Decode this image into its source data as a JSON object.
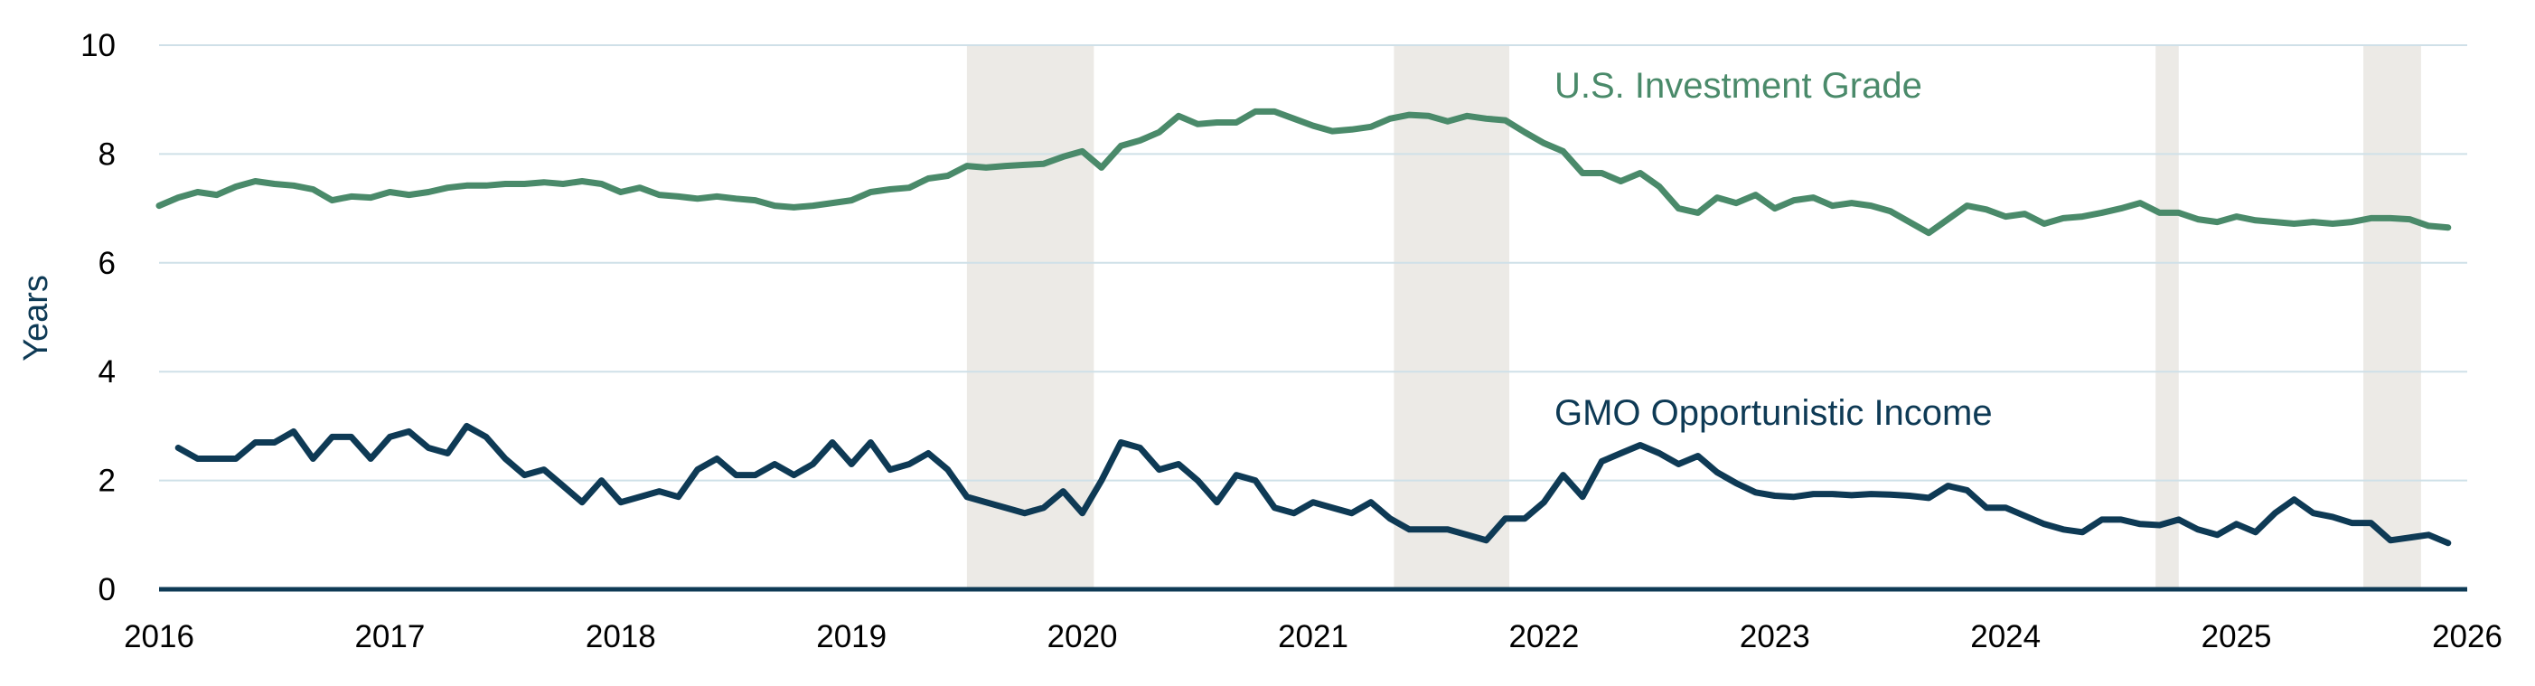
{
  "chart_data": {
    "type": "line",
    "ylabel": "Years",
    "ylim": [
      0,
      10
    ],
    "yticks": [
      "0",
      "2",
      "4",
      "6",
      "8",
      "10"
    ],
    "xlim": [
      2016,
      2026
    ],
    "xticks": [
      "2016",
      "2017",
      "2018",
      "2019",
      "2020",
      "2021",
      "2022",
      "2023",
      "2024",
      "2025",
      "2026"
    ],
    "grid": "horizontal",
    "shaded_periods": [
      [
        2019.5,
        2020.05
      ],
      [
        2021.35,
        2021.85
      ],
      [
        2024.65,
        2024.75
      ],
      [
        2025.55,
        2025.8
      ]
    ],
    "colors": {
      "shade": "#eceae6",
      "grid": "#cfe0e8",
      "axis": "#0e3a55"
    },
    "series": [
      {
        "name": "U.S. Investment Grade",
        "color": "#4a8a6a",
        "x": [
          2016,
          2016.083,
          2016.167,
          2016.25,
          2016.333,
          2016.417,
          2016.5,
          2016.583,
          2016.667,
          2016.75,
          2016.833,
          2016.917,
          2017,
          2017.083,
          2017.167,
          2017.25,
          2017.333,
          2017.417,
          2017.5,
          2017.583,
          2017.667,
          2017.75,
          2017.833,
          2017.917,
          2018,
          2018.083,
          2018.167,
          2018.25,
          2018.333,
          2018.417,
          2018.5,
          2018.583,
          2018.667,
          2018.75,
          2018.833,
          2018.917,
          2019,
          2019.083,
          2019.167,
          2019.25,
          2019.333,
          2019.417,
          2019.5,
          2019.583,
          2019.667,
          2019.75,
          2019.833,
          2019.917,
          2020,
          2020.083,
          2020.167,
          2020.25,
          2020.333,
          2020.417,
          2020.5,
          2020.583,
          2020.667,
          2020.75,
          2020.833,
          2020.917,
          2021,
          2021.083,
          2021.167,
          2021.25,
          2021.333,
          2021.417,
          2021.5,
          2021.583,
          2021.667,
          2021.75,
          2021.833,
          2021.917,
          2022,
          2022.083,
          2022.167,
          2022.25,
          2022.333,
          2022.417,
          2022.5,
          2022.583,
          2022.667,
          2022.75,
          2022.833,
          2022.917,
          2023,
          2023.083,
          2023.167,
          2023.25,
          2023.333,
          2023.417,
          2023.5,
          2023.583,
          2023.667,
          2023.75,
          2023.833,
          2023.917,
          2024,
          2024.083,
          2024.167,
          2024.25,
          2024.333,
          2024.417,
          2024.5,
          2024.583,
          2024.667,
          2024.75,
          2024.833,
          2024.917,
          2025,
          2025.083,
          2025.167,
          2025.25,
          2025.333,
          2025.417,
          2025.5,
          2025.583,
          2025.667,
          2025.75,
          2025.833,
          2025.917
        ],
        "y": [
          7.05,
          7.2,
          7.3,
          7.25,
          7.4,
          7.5,
          7.45,
          7.42,
          7.35,
          7.15,
          7.22,
          7.2,
          7.3,
          7.25,
          7.3,
          7.38,
          7.42,
          7.42,
          7.45,
          7.45,
          7.48,
          7.45,
          7.5,
          7.45,
          7.3,
          7.38,
          7.25,
          7.22,
          7.18,
          7.22,
          7.18,
          7.15,
          7.05,
          7.02,
          7.05,
          7.1,
          7.15,
          7.3,
          7.35,
          7.38,
          7.55,
          7.6,
          7.78,
          7.75,
          7.78,
          7.8,
          7.82,
          7.95,
          8.05,
          7.75,
          8.15,
          8.25,
          8.4,
          8.7,
          8.55,
          8.58,
          8.58,
          8.78,
          8.78,
          8.65,
          8.52,
          8.42,
          8.45,
          8.5,
          8.65,
          8.72,
          8.7,
          8.6,
          8.7,
          8.65,
          8.62,
          8.4,
          8.2,
          8.05,
          7.65,
          7.65,
          7.5,
          7.65,
          7.4,
          7.0,
          6.92,
          7.2,
          7.1,
          7.25,
          7.0,
          7.15,
          7.2,
          7.05,
          7.1,
          7.05,
          6.95,
          6.75,
          6.55,
          6.8,
          7.05,
          6.98,
          6.85,
          6.9,
          6.72,
          6.82,
          6.85,
          6.92,
          7.0,
          7.1,
          6.92,
          6.92,
          6.8,
          6.75,
          6.85,
          6.78,
          6.75,
          6.72,
          6.75,
          6.72,
          6.75,
          6.82,
          6.82,
          6.8,
          6.68,
          6.65
        ]
      },
      {
        "name": "GMO Opportunistic Income",
        "color": "#0e3a55",
        "x": [
          2016.083,
          2016.167,
          2016.25,
          2016.333,
          2016.417,
          2016.5,
          2016.583,
          2016.667,
          2016.75,
          2016.833,
          2016.917,
          2017,
          2017.083,
          2017.167,
          2017.25,
          2017.333,
          2017.417,
          2017.5,
          2017.583,
          2017.667,
          2017.75,
          2017.833,
          2017.917,
          2018,
          2018.083,
          2018.167,
          2018.25,
          2018.333,
          2018.417,
          2018.5,
          2018.583,
          2018.667,
          2018.75,
          2018.833,
          2018.917,
          2019,
          2019.083,
          2019.167,
          2019.25,
          2019.333,
          2019.417,
          2019.5,
          2019.583,
          2019.667,
          2019.75,
          2019.833,
          2019.917,
          2020,
          2020.083,
          2020.167,
          2020.25,
          2020.333,
          2020.417,
          2020.5,
          2020.583,
          2020.667,
          2020.75,
          2020.833,
          2020.917,
          2021,
          2021.083,
          2021.167,
          2021.25,
          2021.333,
          2021.417,
          2021.5,
          2021.583,
          2021.667,
          2021.75,
          2021.833,
          2021.917,
          2022,
          2022.083,
          2022.167,
          2022.25,
          2022.333,
          2022.417,
          2022.5,
          2022.583,
          2022.667,
          2022.75,
          2022.833,
          2022.917,
          2023,
          2023.083,
          2023.167,
          2023.25,
          2023.333,
          2023.417,
          2023.5,
          2023.583,
          2023.667,
          2023.75,
          2023.833,
          2023.917,
          2024,
          2024.083,
          2024.167,
          2024.25,
          2024.333,
          2024.417,
          2024.5,
          2024.583,
          2024.667,
          2024.75,
          2024.833,
          2024.917,
          2025,
          2025.083,
          2025.167,
          2025.25,
          2025.333,
          2025.417,
          2025.5,
          2025.583,
          2025.667,
          2025.75,
          2025.833,
          2025.917
        ],
        "y": [
          2.6,
          2.4,
          2.4,
          2.4,
          2.7,
          2.7,
          2.9,
          2.4,
          2.8,
          2.8,
          2.4,
          2.8,
          2.9,
          2.6,
          2.5,
          3.0,
          2.8,
          2.4,
          2.1,
          2.2,
          1.9,
          1.6,
          2.0,
          1.6,
          1.7,
          1.8,
          1.7,
          2.2,
          2.4,
          2.1,
          2.1,
          2.3,
          2.1,
          2.3,
          2.7,
          2.3,
          2.7,
          2.2,
          2.3,
          2.5,
          2.2,
          1.7,
          1.6,
          1.5,
          1.4,
          1.5,
          1.8,
          1.4,
          2.0,
          2.7,
          2.6,
          2.2,
          2.3,
          2.0,
          1.6,
          2.1,
          2.0,
          1.5,
          1.4,
          1.6,
          1.5,
          1.4,
          1.6,
          1.3,
          1.1,
          1.1,
          1.1,
          1.0,
          0.9,
          1.3,
          1.3,
          1.6,
          2.1,
          1.7,
          2.35,
          2.5,
          2.65,
          2.5,
          2.3,
          2.45,
          2.15,
          1.95,
          1.78,
          1.72,
          1.7,
          1.75,
          1.75,
          1.73,
          1.75,
          1.74,
          1.72,
          1.68,
          1.9,
          1.82,
          1.5,
          1.5,
          1.35,
          1.2,
          1.1,
          1.05,
          1.28,
          1.28,
          1.2,
          1.18,
          1.28,
          1.1,
          1.0,
          1.2,
          1.05,
          1.4,
          1.65,
          1.4,
          1.33,
          1.22,
          1.22,
          0.9,
          0.95,
          1.0,
          0.85
        ]
      }
    ]
  }
}
